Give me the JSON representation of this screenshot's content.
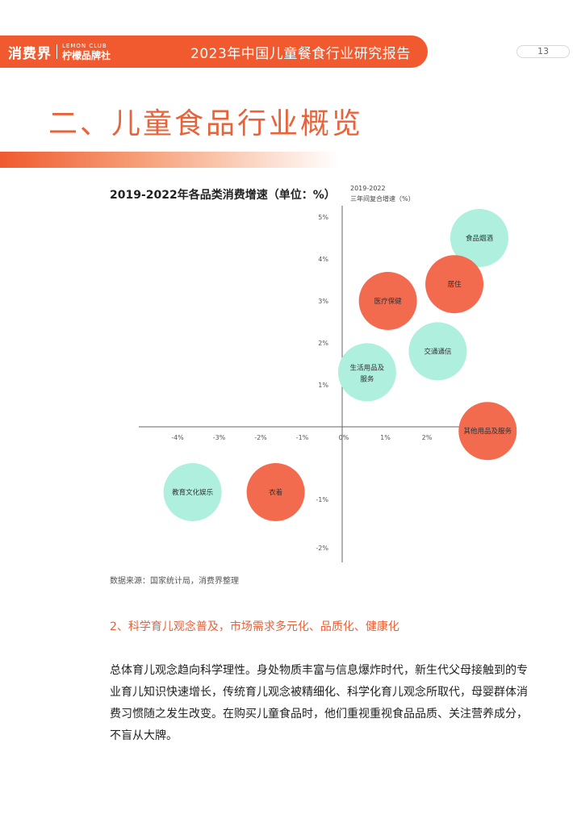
{
  "header": {
    "logo_main": "消费界",
    "logo_en": "LEMON CLUB",
    "logo_cn": "柠檬品牌社",
    "report_title": "2023年中国儿童餐食行业研究报告",
    "page_number": "13"
  },
  "section": {
    "title": "二、儿童食品行业概览"
  },
  "chart_data": {
    "type": "scatter",
    "title": "2019-2022年各品类消费增速（单位：%）",
    "xlabel": "",
    "ylabel_line1": "2019-2022",
    "ylabel_line2": "三年间复合增速（%）",
    "xlim": [
      -4.5,
      4.0
    ],
    "ylim": [
      -2.5,
      5.0
    ],
    "x_ticks": [
      -4,
      -3,
      -2,
      -1,
      0,
      1,
      2,
      3,
      4
    ],
    "x_tick_labels": [
      "-4%",
      "-3%",
      "-2%",
      "-1%",
      "0%",
      "1%",
      "2%",
      "3%",
      "4%"
    ],
    "y_ticks": [
      5,
      4,
      3,
      2,
      1,
      -1,
      -2
    ],
    "y_tick_labels": [
      "5%",
      "4%",
      "3%",
      "2%",
      "1%",
      "-1%",
      "-2%"
    ],
    "colors": {
      "teal": "#aef0dd",
      "coral": "#f26b4f"
    },
    "points": [
      {
        "label": "食品烟酒",
        "x": 3.3,
        "y": 4.5,
        "color": "teal"
      },
      {
        "label": "居住",
        "x": 2.7,
        "y": 3.4,
        "color": "coral"
      },
      {
        "label": "医疗保健",
        "x": 1.1,
        "y": 3.0,
        "color": "coral"
      },
      {
        "label": "交通通信",
        "x": 2.3,
        "y": 1.8,
        "color": "teal"
      },
      {
        "label": "生活用品及服务",
        "x": 0.6,
        "y": 1.3,
        "color": "teal"
      },
      {
        "label": "其他用品及服务",
        "x": 3.5,
        "y": -0.1,
        "color": "coral"
      },
      {
        "label": "教育文化娱乐",
        "x": -3.6,
        "y": -1.3,
        "color": "teal"
      },
      {
        "label": "衣着",
        "x": -1.6,
        "y": -1.3,
        "color": "coral"
      }
    ]
  },
  "source": "数据来源：国家统计局，消费界整理",
  "subheading": "2、科学育儿观念普及，市场需求多元化、品质化、健康化",
  "body": "总体育儿观念趋向科学理性。身处物质丰富与信息爆炸时代，新生代父母接触到的专业育儿知识快速增长，传统育儿观念被精细化、科学化育儿观念所取代，母婴群体消费习惯随之发生改变。在购买儿童食品时，他们重视重视食品品质、关注营养成分，不盲从大牌。"
}
